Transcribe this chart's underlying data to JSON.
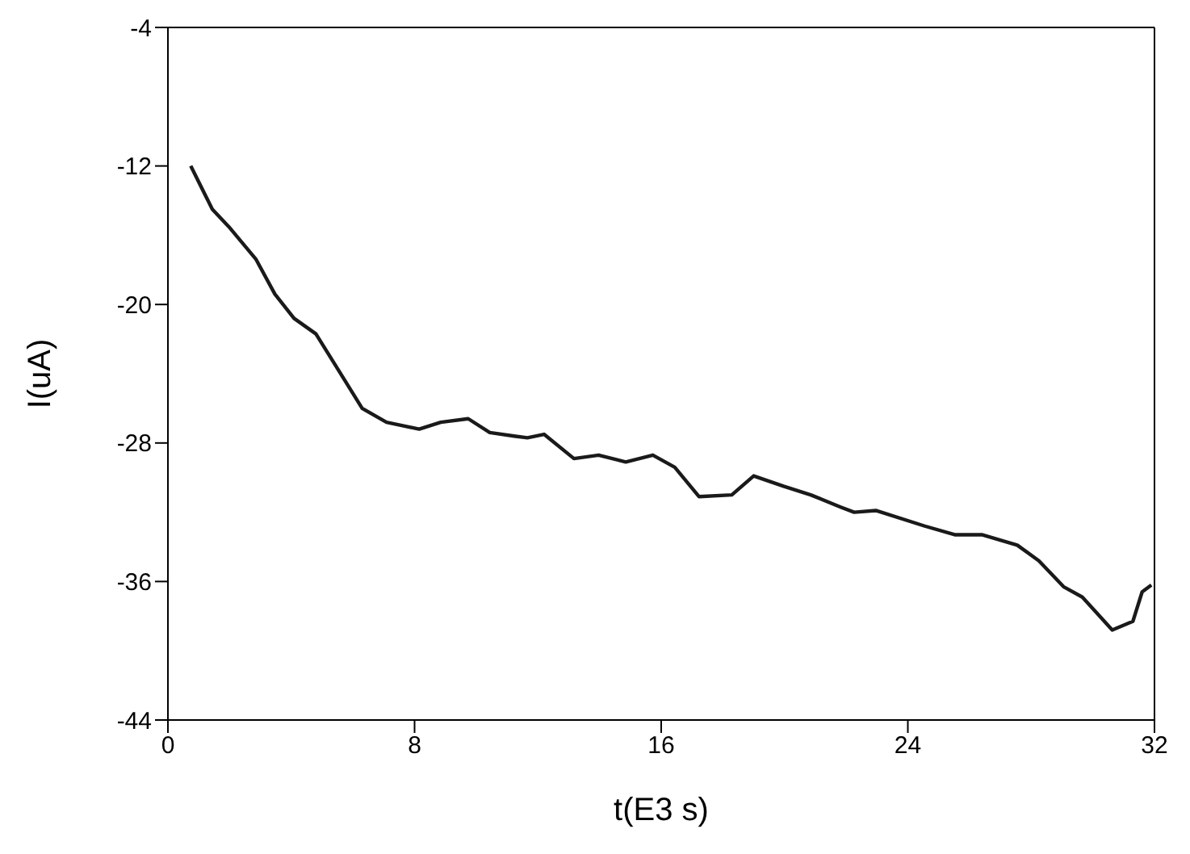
{
  "chart_data": {
    "type": "line",
    "xlabel": "t(E3 s)",
    "ylabel": "I(uA)",
    "xlim": [
      0,
      32
    ],
    "xticks": [
      0,
      8,
      16,
      24,
      32
    ],
    "ylim": [
      -44,
      -4
    ],
    "yticks": [
      -44,
      -36,
      -28,
      -20,
      -12,
      -4
    ],
    "marker": "none",
    "line_style": "solid",
    "series": [
      {
        "color": "#1a1a1a",
        "x": [
          0.74,
          1.44,
          1.97,
          2.86,
          3.47,
          4.09,
          4.8,
          5.5,
          6.3,
          7.09,
          8.15,
          8.85,
          9.74,
          10.44,
          11.23,
          11.66,
          12.2,
          13.17,
          13.97,
          14.85,
          15.73,
          16.44,
          17.23,
          18.29,
          19.0,
          19.97,
          20.85,
          21.82,
          22.26,
          22.96,
          24.55,
          25.52,
          26.4,
          27.55,
          28.25,
          29.05,
          29.66,
          30.63,
          31.3,
          31.6,
          31.9
        ],
        "values": [
          -12,
          -14.5,
          -15.5,
          -17.4,
          -19.4,
          -20.8,
          -21.7,
          -23.7,
          -26.0,
          -26.8,
          -27.2,
          -26.8,
          -26.6,
          -27.4,
          -27.6,
          -27.7,
          -27.5,
          -28.9,
          -28.7,
          -29.1,
          -28.7,
          -29.4,
          -31.1,
          -31.0,
          -29.9,
          -30.5,
          -31.0,
          -31.7,
          -32.0,
          -31.9,
          -32.8,
          -33.3,
          -33.3,
          -33.9,
          -34.8,
          -36.3,
          -36.9,
          -38.8,
          -38.3,
          -36.6,
          -36.2
        ]
      }
    ]
  }
}
